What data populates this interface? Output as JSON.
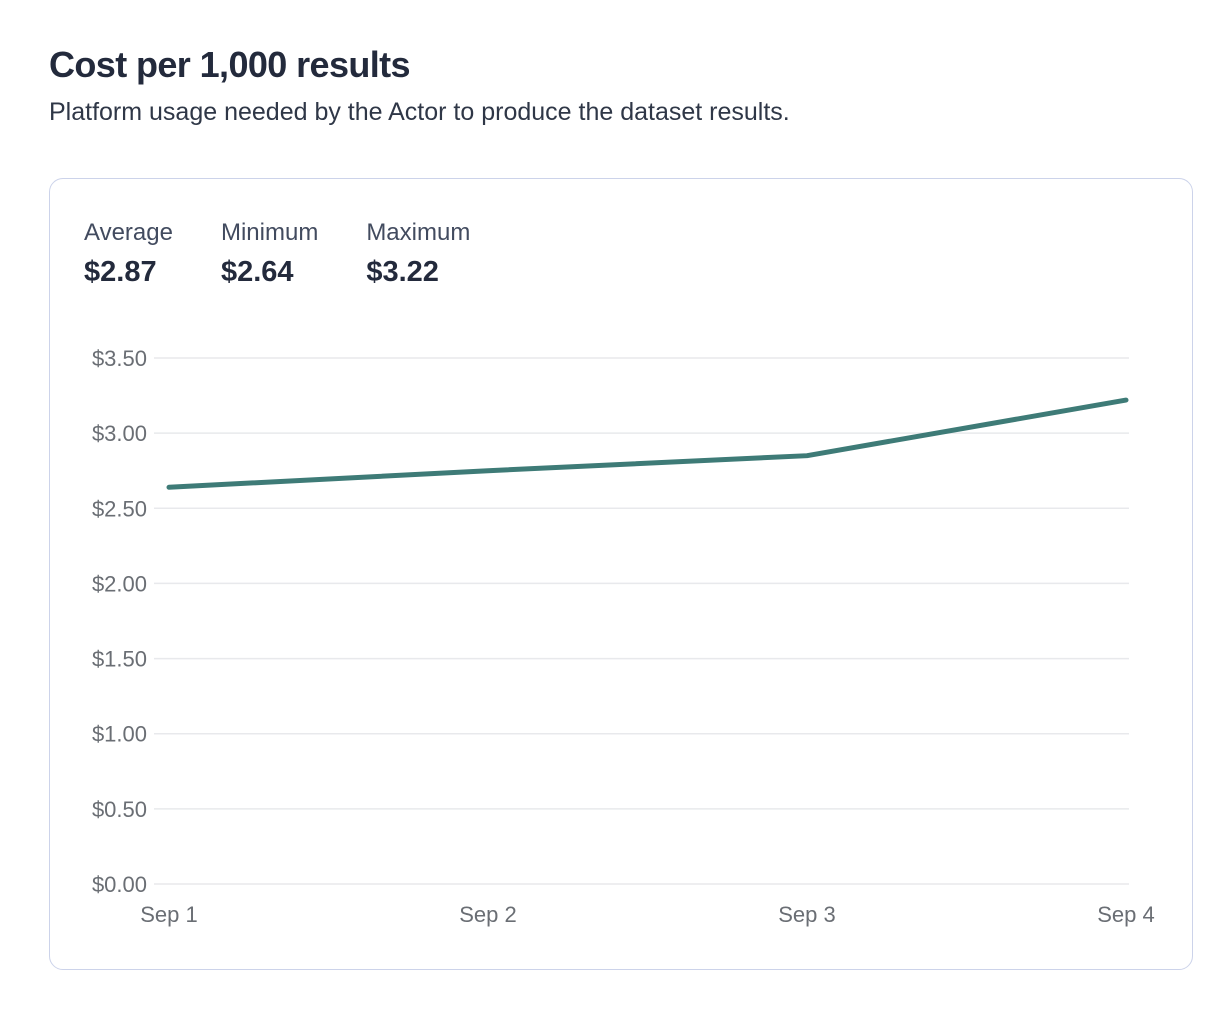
{
  "header": {
    "title": "Cost per 1,000 results",
    "subtitle": "Platform usage needed by the Actor to produce the dataset results."
  },
  "stats": [
    {
      "label": "Average",
      "value": "$2.87"
    },
    {
      "label": "Minimum",
      "value": "$2.64"
    },
    {
      "label": "Maximum",
      "value": "$3.22"
    }
  ],
  "chart_data": {
    "type": "line",
    "title": "Cost per 1,000 results",
    "x": [
      "Sep 1",
      "Sep 2",
      "Sep 3",
      "Sep 4"
    ],
    "values": [
      2.64,
      2.75,
      2.85,
      3.22
    ],
    "series": [
      {
        "name": "Cost per 1,000 results",
        "values": [
          2.64,
          2.75,
          2.85,
          3.22
        ]
      }
    ],
    "xlabel": "",
    "ylabel": "",
    "ylim": [
      0,
      3.5
    ],
    "ytick_values": [
      0,
      0.5,
      1.0,
      1.5,
      2.0,
      2.5,
      3.0,
      3.5
    ],
    "ytick_labels": [
      "$0.00",
      "$0.50",
      "$1.00",
      "$1.50",
      "$2.00",
      "$2.50",
      "$3.00",
      "$3.50"
    ],
    "grid": true,
    "legend": "none",
    "line_color": "#3e7b77",
    "grid_color": "#e8e9ec",
    "tick_color": "#6a6e74"
  }
}
